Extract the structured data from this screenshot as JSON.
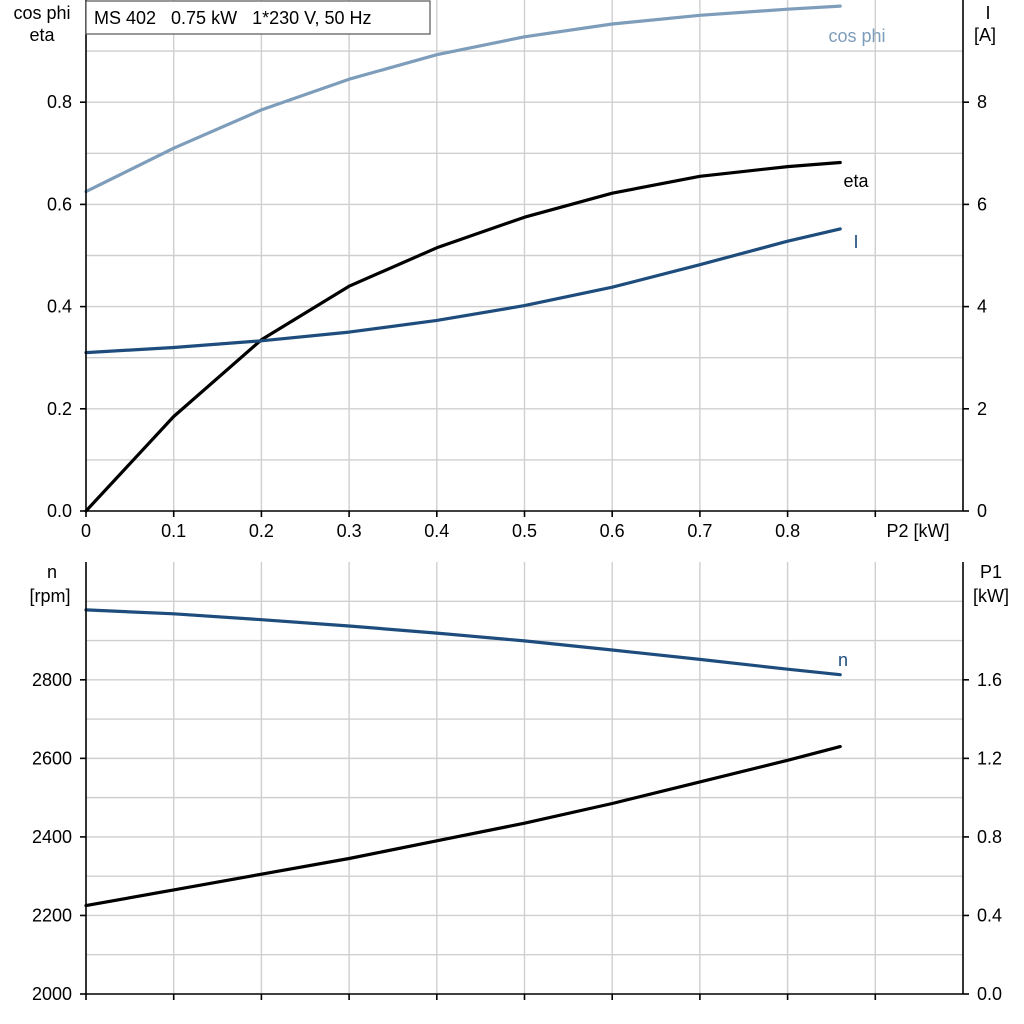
{
  "chart_data": [
    {
      "type": "line",
      "title": "MS 402   0.75 kW   1*230 V, 50 Hz",
      "xlabel": "P2 [kW]",
      "ylabel_left": [
        "cos phi",
        "eta"
      ],
      "ylabel_right": [
        "I",
        "[A]"
      ],
      "xlim": [
        0,
        1.0
      ],
      "ylim_left": [
        0,
        1.0
      ],
      "ylim_right": [
        0,
        10
      ],
      "x_ticks": [
        "0",
        "0.1",
        "0.2",
        "0.3",
        "0.4",
        "0.5",
        "0.6",
        "0.7",
        "0.8"
      ],
      "left_ticks": [
        "0.0",
        "0.2",
        "0.4",
        "0.6",
        "0.8"
      ],
      "right_ticks": [
        "0",
        "2",
        "4",
        "6",
        "8"
      ],
      "grid": true,
      "series": [
        {
          "name": "cos phi",
          "axis": "left",
          "color": "#7d9dbb",
          "x": [
            0,
            0.1,
            0.2,
            0.3,
            0.4,
            0.5,
            0.6,
            0.7,
            0.8,
            0.86
          ],
          "y": [
            0.625,
            0.71,
            0.785,
            0.845,
            0.893,
            0.928,
            0.953,
            0.97,
            0.982,
            0.988
          ]
        },
        {
          "name": "eta",
          "axis": "left",
          "color": "#000000",
          "x": [
            0,
            0.1,
            0.2,
            0.3,
            0.4,
            0.5,
            0.6,
            0.7,
            0.8,
            0.86
          ],
          "y": [
            0.0,
            0.185,
            0.335,
            0.44,
            0.515,
            0.575,
            0.622,
            0.655,
            0.674,
            0.682
          ]
        },
        {
          "name": "I",
          "axis": "right",
          "color": "#1e4d7d",
          "x": [
            0,
            0.1,
            0.2,
            0.3,
            0.4,
            0.5,
            0.6,
            0.7,
            0.8,
            0.86
          ],
          "y": [
            3.1,
            3.2,
            3.33,
            3.5,
            3.73,
            4.02,
            4.38,
            4.82,
            5.28,
            5.52
          ]
        }
      ]
    },
    {
      "type": "line",
      "xlim": [
        0,
        1.0
      ],
      "ylabel_left": [
        "n",
        "[rpm]"
      ],
      "ylabel_right": [
        "P1",
        "[kW]"
      ],
      "ylim_left": [
        2000,
        3100
      ],
      "ylim_right": [
        0,
        2.2
      ],
      "left_ticks": [
        "2000",
        "2200",
        "2400",
        "2600",
        "2800"
      ],
      "right_ticks": [
        "0.0",
        "0.4",
        "0.8",
        "1.2",
        "1.6"
      ],
      "grid": true,
      "series": [
        {
          "name": "n",
          "axis": "left",
          "color": "#1e4d7d",
          "x": [
            0,
            0.1,
            0.2,
            0.3,
            0.4,
            0.5,
            0.6,
            0.7,
            0.8,
            0.86
          ],
          "y": [
            2978,
            2968,
            2953,
            2937,
            2919,
            2899,
            2876,
            2852,
            2827,
            2813
          ]
        },
        {
          "name": "",
          "axis": "right",
          "color": "#000000",
          "x": [
            0,
            0.1,
            0.2,
            0.3,
            0.4,
            0.5,
            0.6,
            0.7,
            0.8,
            0.86
          ],
          "y": [
            0.45,
            0.53,
            0.61,
            0.69,
            0.78,
            0.87,
            0.97,
            1.08,
            1.19,
            1.26
          ]
        }
      ]
    }
  ]
}
